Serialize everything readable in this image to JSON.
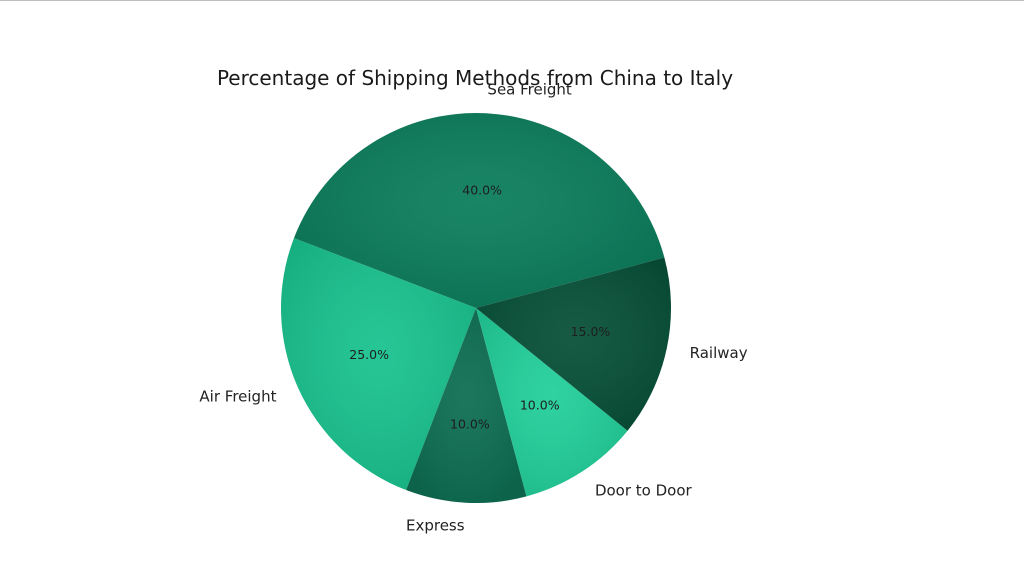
{
  "chart_data": {
    "type": "pie",
    "title": "Percentage of Shipping Methods from China to Italy",
    "categories": [
      "Sea Freight",
      "Air Freight",
      "Express",
      "Door to Door",
      "Railway"
    ],
    "values": [
      40.0,
      25.0,
      10.0,
      10.0,
      15.0
    ],
    "percent_labels": [
      "40.0%",
      "25.0%",
      "10.0%",
      "10.0%",
      "15.0%"
    ],
    "colors": [
      "#0b7d5b",
      "#19c28e",
      "#0d6e51",
      "#22cf9a",
      "#075038"
    ],
    "start_angle_deg": 15,
    "direction": "counterclockwise",
    "legend": "none"
  }
}
